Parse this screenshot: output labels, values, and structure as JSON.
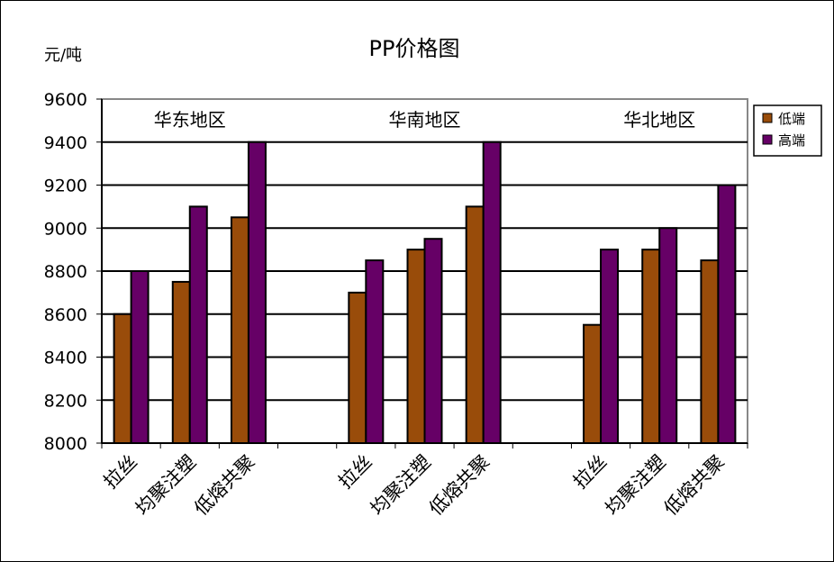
{
  "chart_data": {
    "type": "bar",
    "title": "PP价格图",
    "ylabel": "元/吨",
    "xlabel": "",
    "ylim": [
      8000,
      9600
    ],
    "yticks": [
      8000,
      8200,
      8400,
      8600,
      8800,
      9000,
      9200,
      9400,
      9600
    ],
    "grid": true,
    "legend_position": "right",
    "groups": [
      {
        "region": "华东地区",
        "categories": [
          "拉丝",
          "均聚注塑",
          "低熔共聚"
        ]
      },
      {
        "region": "华南地区",
        "categories": [
          "拉丝",
          "均聚注塑",
          "低熔共聚"
        ]
      },
      {
        "region": "华北地区",
        "categories": [
          "拉丝",
          "均聚注塑",
          "低熔共聚"
        ]
      }
    ],
    "series": [
      {
        "name": "低端",
        "color": "#994C0A",
        "values": [
          [
            8600,
            8750,
            9050
          ],
          [
            8700,
            8900,
            9100
          ],
          [
            8550,
            8900,
            8850
          ]
        ]
      },
      {
        "name": "高端",
        "color": "#660066",
        "values": [
          [
            8800,
            9100,
            9400
          ],
          [
            8850,
            8950,
            9400
          ],
          [
            8900,
            9000,
            9200
          ]
        ]
      }
    ]
  }
}
